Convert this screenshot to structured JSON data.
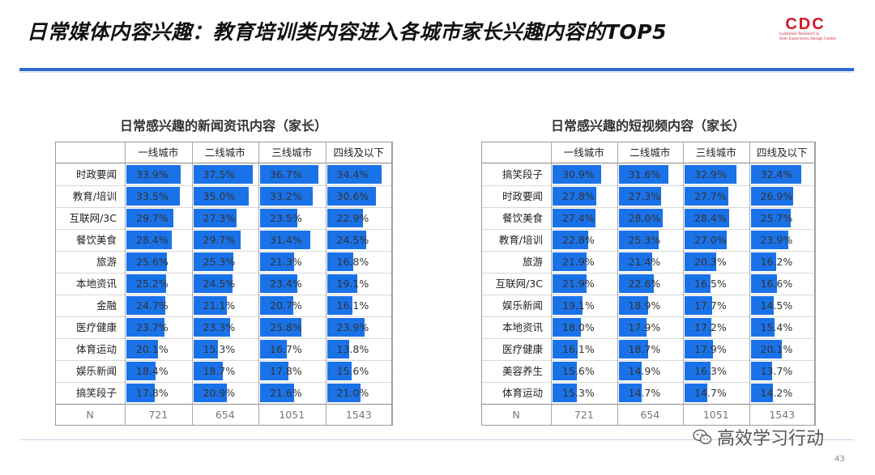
{
  "header": {
    "title": "日常媒体内容兴趣：教育培训类内容进入各城市家长兴趣内容的TOP5",
    "logo_text": "CDC",
    "logo_sub_1": "Customer Research &",
    "logo_sub_2": "User Experience Design Center"
  },
  "watermark": {
    "text": "高效学习行动",
    "icon": "wechat-icon"
  },
  "page_number": "43",
  "colors": {
    "bar": "#1a72e8",
    "accent": "#2c6bd1",
    "logo": "#d0182a"
  },
  "chart_data": [
    {
      "type": "table",
      "title": "日常感兴趣的新闻资讯内容（家长）",
      "columns": [
        "一线城市",
        "二线城市",
        "三线城市",
        "四线及以下"
      ],
      "rows": [
        {
          "label": "时政要闻",
          "values": [
            33.9,
            37.5,
            36.7,
            34.4
          ]
        },
        {
          "label": "教育/培训",
          "values": [
            33.5,
            35.0,
            33.2,
            30.6
          ]
        },
        {
          "label": "互联网/3C",
          "values": [
            29.7,
            27.3,
            23.5,
            22.9
          ]
        },
        {
          "label": "餐饮美食",
          "values": [
            28.4,
            29.7,
            31.4,
            24.5
          ]
        },
        {
          "label": "旅游",
          "values": [
            25.6,
            25.3,
            21.3,
            16.8
          ]
        },
        {
          "label": "本地资讯",
          "values": [
            25.2,
            24.5,
            23.4,
            19.1
          ]
        },
        {
          "label": "金融",
          "values": [
            24.7,
            21.1,
            20.7,
            16.1
          ]
        },
        {
          "label": "医疗健康",
          "values": [
            23.7,
            23.3,
            25.8,
            23.9
          ]
        },
        {
          "label": "体育运动",
          "values": [
            20.1,
            15.3,
            16.7,
            13.8
          ]
        },
        {
          "label": "娱乐新闻",
          "values": [
            18.4,
            18.7,
            17.8,
            15.6
          ]
        },
        {
          "label": "搞笑段子",
          "values": [
            17.8,
            20.9,
            21.6,
            21.0
          ]
        }
      ],
      "n_label": "N",
      "n_values": [
        "721",
        "654",
        "1051",
        "1543"
      ],
      "unit": "%"
    },
    {
      "type": "table",
      "title": "日常感兴趣的短视频内容（家长）",
      "columns": [
        "一线城市",
        "二线城市",
        "三线城市",
        "四线及以下"
      ],
      "rows": [
        {
          "label": "搞笑段子",
          "values": [
            30.9,
            31.6,
            32.9,
            32.4
          ]
        },
        {
          "label": "时政要闻",
          "values": [
            27.8,
            27.3,
            27.7,
            26.9
          ]
        },
        {
          "label": "餐饮美食",
          "values": [
            27.4,
            28.0,
            28.4,
            25.7
          ]
        },
        {
          "label": "教育/培训",
          "values": [
            22.8,
            25.3,
            27.0,
            23.9
          ]
        },
        {
          "label": "旅游",
          "values": [
            21.9,
            21.4,
            20.3,
            16.2
          ]
        },
        {
          "label": "互联网/3C",
          "values": [
            21.9,
            22.6,
            16.5,
            16.6
          ]
        },
        {
          "label": "娱乐新闻",
          "values": [
            19.1,
            18.9,
            17.7,
            14.5
          ]
        },
        {
          "label": "本地资讯",
          "values": [
            18.0,
            17.9,
            17.2,
            15.4
          ]
        },
        {
          "label": "医疗健康",
          "values": [
            16.1,
            18.7,
            17.9,
            20.1
          ]
        },
        {
          "label": "美容养生",
          "values": [
            15.6,
            14.9,
            16.3,
            13.7
          ]
        },
        {
          "label": "体育运动",
          "values": [
            15.3,
            14.7,
            14.7,
            14.2
          ]
        }
      ],
      "n_label": "N",
      "n_values": [
        "721",
        "654",
        "1051",
        "1543"
      ],
      "unit": "%"
    }
  ]
}
